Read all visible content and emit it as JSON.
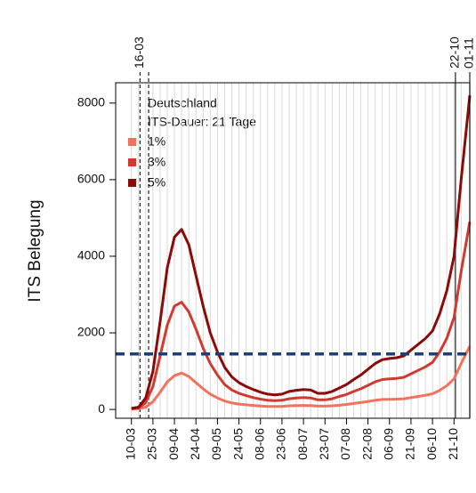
{
  "chart_data": {
    "type": "line",
    "y_label": "ITS Belegung",
    "annotations": [
      "Deutschland",
      "ITS-Dauer: 21 Tage"
    ],
    "x": [
      "10-03",
      "15-03",
      "20-03",
      "25-03",
      "30-03",
      "04-04",
      "09-04",
      "14-04",
      "19-04",
      "24-04",
      "29-04",
      "04-05",
      "09-05",
      "14-05",
      "19-05",
      "24-05",
      "29-05",
      "03-06",
      "08-06",
      "13-06",
      "18-06",
      "23-06",
      "28-06",
      "03-07",
      "08-07",
      "13-07",
      "18-07",
      "23-07",
      "28-07",
      "02-08",
      "07-08",
      "12-08",
      "17-08",
      "22-08",
      "27-08",
      "01-09",
      "06-09",
      "11-09",
      "16-09",
      "21-09",
      "26-09",
      "01-10",
      "06-10",
      "11-10",
      "16-10",
      "21-10",
      "26-10",
      "01-11"
    ],
    "series": [
      {
        "name": "1%",
        "color": "#f4715e",
        "values": [
          10,
          20,
          60,
          200,
          450,
          720,
          880,
          950,
          860,
          700,
          540,
          400,
          300,
          220,
          170,
          140,
          120,
          105,
          90,
          80,
          76,
          80,
          95,
          100,
          105,
          100,
          85,
          85,
          95,
          110,
          130,
          155,
          180,
          210,
          240,
          260,
          265,
          270,
          280,
          310,
          340,
          370,
          410,
          500,
          620,
          800,
          1200,
          1650
        ]
      },
      {
        "name": "3%",
        "color": "#cf3b30",
        "values": [
          20,
          40,
          180,
          600,
          1400,
          2200,
          2700,
          2800,
          2550,
          2100,
          1600,
          1200,
          900,
          650,
          510,
          420,
          360,
          310,
          270,
          240,
          230,
          240,
          280,
          300,
          310,
          300,
          250,
          250,
          280,
          340,
          390,
          470,
          540,
          630,
          720,
          780,
          800,
          810,
          840,
          930,
          1020,
          1110,
          1230,
          1500,
          1860,
          2400,
          3600,
          4900
        ]
      },
      {
        "name": "5%",
        "color": "#8b0a0a",
        "values": [
          30,
          60,
          300,
          1000,
          2300,
          3700,
          4500,
          4700,
          4300,
          3500,
          2700,
          2000,
          1500,
          1100,
          850,
          700,
          600,
          520,
          450,
          400,
          380,
          400,
          470,
          500,
          520,
          510,
          420,
          420,
          470,
          560,
          650,
          780,
          900,
          1050,
          1200,
          1300,
          1330,
          1350,
          1400,
          1550,
          1700,
          1850,
          2050,
          2500,
          3100,
          4000,
          6000,
          8200
        ]
      }
    ],
    "xlim": [
      "27-02",
      "01-11"
    ],
    "xticks": [
      "10-03",
      "25-03",
      "09-04",
      "24-04",
      "09-05",
      "24-05",
      "08-06",
      "23-06",
      "08-07",
      "23-07",
      "07-08",
      "22-08",
      "06-09",
      "21-09",
      "06-10",
      "21-10"
    ],
    "ylim": [
      -230,
      8530
    ],
    "yticks": [
      0,
      2000,
      4000,
      6000,
      8000
    ],
    "hline": {
      "value": 1450,
      "color": "#1f3f73"
    },
    "vlines": [
      {
        "x": "16-03",
        "label": "16-03",
        "style": "dashed"
      },
      {
        "x": "22-03",
        "style": "dashed"
      },
      {
        "x": "22-10",
        "label": "22-10",
        "style": "solid"
      },
      {
        "x": "01-11",
        "label": "01-11",
        "style": "solid"
      }
    ],
    "grid": true,
    "legend": "upper left"
  }
}
